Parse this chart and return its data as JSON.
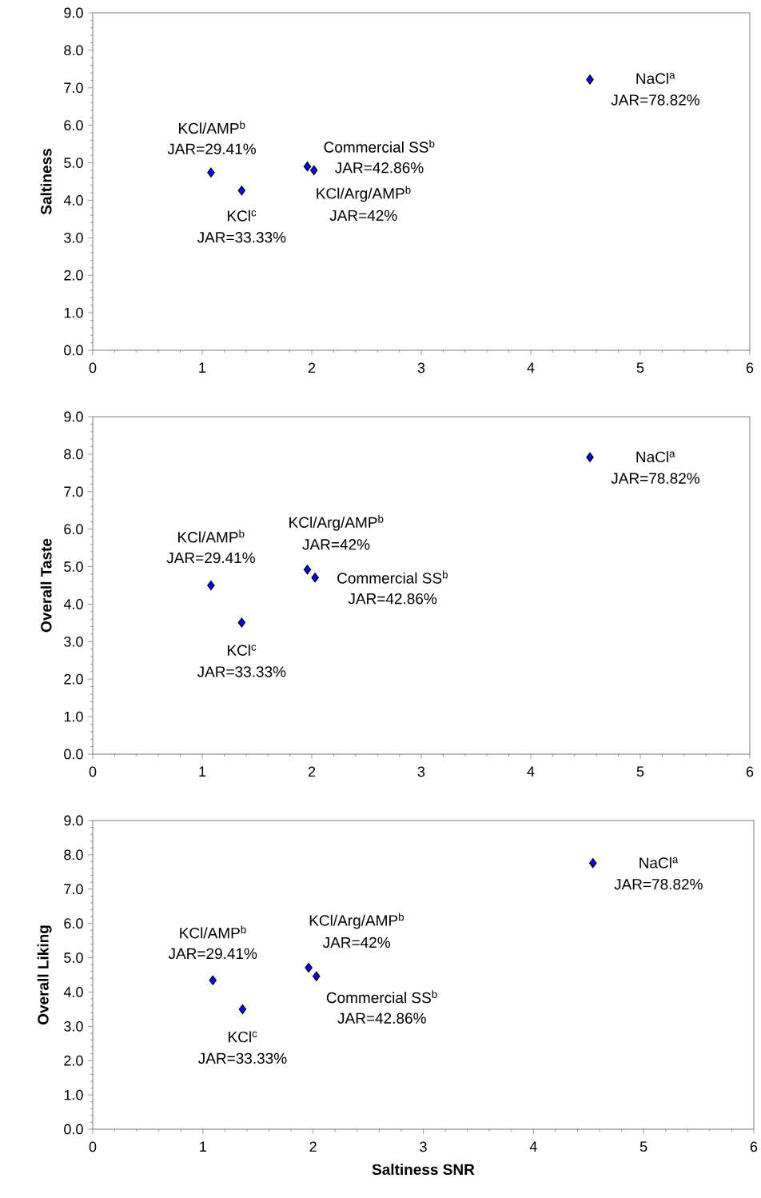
{
  "chart_data": [
    {
      "type": "scatter",
      "ylabel": "Saltiness",
      "marker": "diamond",
      "grid": false,
      "tick_labels": true,
      "series": [
        {
          "color": "#0000ff",
          "x": [
            1.08,
            1.36,
            1.96,
            2.02,
            4.54
          ],
          "values": [
            4.74,
            4.26,
            4.9,
            4.8,
            7.22
          ]
        }
      ],
      "xlim": [
        0,
        6
      ],
      "xticks": [
        0,
        1,
        2,
        3,
        4,
        5,
        6
      ],
      "ylim": [
        0,
        9
      ],
      "yticks": [
        {
          "value": 0,
          "label": "0.0"
        },
        {
          "value": 1,
          "label": "1.0"
        },
        {
          "value": 2,
          "label": "2.0"
        },
        {
          "value": 3,
          "label": "3.0"
        },
        {
          "value": 4,
          "label": "4.0"
        },
        {
          "value": 5,
          "label": "5.0"
        },
        {
          "value": 6,
          "label": "6.0"
        },
        {
          "value": 7,
          "label": "7.0"
        },
        {
          "value": 8,
          "label": "8.0"
        },
        {
          "value": 9,
          "label": "9.0"
        }
      ],
      "annotations": [
        "KCl/AMP$^{b}$",
        "JAR=29.41%",
        "KCl$^{c}$",
        "JAR=33.33%",
        "Commercial SS$^{b}$",
        "JAR=42.86%",
        "KCl/Arg/AMP$^{b}$",
        "JAR=42%",
        "NaCl$^{a}$",
        "JAR=78.82%"
      ]
    },
    {
      "type": "scatter",
      "ylabel": "Overall Taste",
      "marker": "diamond",
      "grid": false,
      "tick_labels": true,
      "series": [
        {
          "color": "#0000ff",
          "x": [
            1.08,
            1.36,
            2.03,
            1.96,
            4.54
          ],
          "values": [
            4.5,
            3.51,
            4.71,
            4.92,
            7.92
          ]
        }
      ],
      "xlim": [
        0,
        6
      ],
      "xticks": [
        0,
        1,
        2,
        3,
        4,
        5,
        6
      ],
      "ylim": [
        0,
        9
      ],
      "yticks": [
        {
          "value": 0,
          "label": "0.0"
        },
        {
          "value": 1,
          "label": "1.0"
        },
        {
          "value": 2,
          "label": "2.0"
        },
        {
          "value": 3,
          "label": "3.0"
        },
        {
          "value": 4,
          "label": "4.0"
        },
        {
          "value": 5,
          "label": "5.0"
        },
        {
          "value": 6,
          "label": "6.0"
        },
        {
          "value": 7,
          "label": "7.0"
        },
        {
          "value": 8,
          "label": "8.0"
        },
        {
          "value": 9,
          "label": "9.0"
        }
      ],
      "annotations": [
        "KCl/AMP$^{b}$",
        "JAR=29.41%",
        "KCl$^{c}$",
        "JAR=33.33%",
        "Commercial SS$^{b}$",
        "JAR=42.86%",
        "KCl/Arg/AMP$^{b}$",
        "JAR=42%",
        "NaCl$^{a}$",
        "JAR=78.82%"
      ]
    },
    {
      "type": "scatter",
      "xlabel": "Saltiness SNR",
      "ylabel": "Overall Liking",
      "marker": "diamond",
      "grid": false,
      "tick_labels": true,
      "series": [
        {
          "color": "#0000ff",
          "x": [
            1.09,
            1.36,
            2.03,
            1.96,
            4.54
          ],
          "values": [
            4.34,
            3.5,
            4.46,
            4.71,
            7.76
          ]
        }
      ],
      "xlim": [
        0,
        6
      ],
      "xticks": [
        0,
        1,
        2,
        3,
        4,
        5,
        6
      ],
      "ylim": [
        0,
        9
      ],
      "yticks": [
        {
          "value": 0,
          "label": "0.0"
        },
        {
          "value": 1,
          "label": "1.0"
        },
        {
          "value": 2,
          "label": "2.0"
        },
        {
          "value": 3,
          "label": "3.0"
        },
        {
          "value": 4,
          "label": "4.0"
        },
        {
          "value": 5,
          "label": "5.0"
        },
        {
          "value": 6,
          "label": "6.0"
        },
        {
          "value": 7,
          "label": "7.0"
        },
        {
          "value": 8,
          "label": "8.0"
        },
        {
          "value": 9,
          "label": "9.0"
        }
      ],
      "annotations": [
        "KCl/AMP$^{b}$",
        "JAR=29.41%",
        "KCl$^{c}$",
        "JAR=33.33%",
        "Commercial SS$^{b}$",
        "JAR=42.86%",
        "KCl/Arg/AMP$^{b}$",
        "JAR=42%",
        "NaCl$^{a}$",
        "JAR=78.82%"
      ]
    }
  ]
}
